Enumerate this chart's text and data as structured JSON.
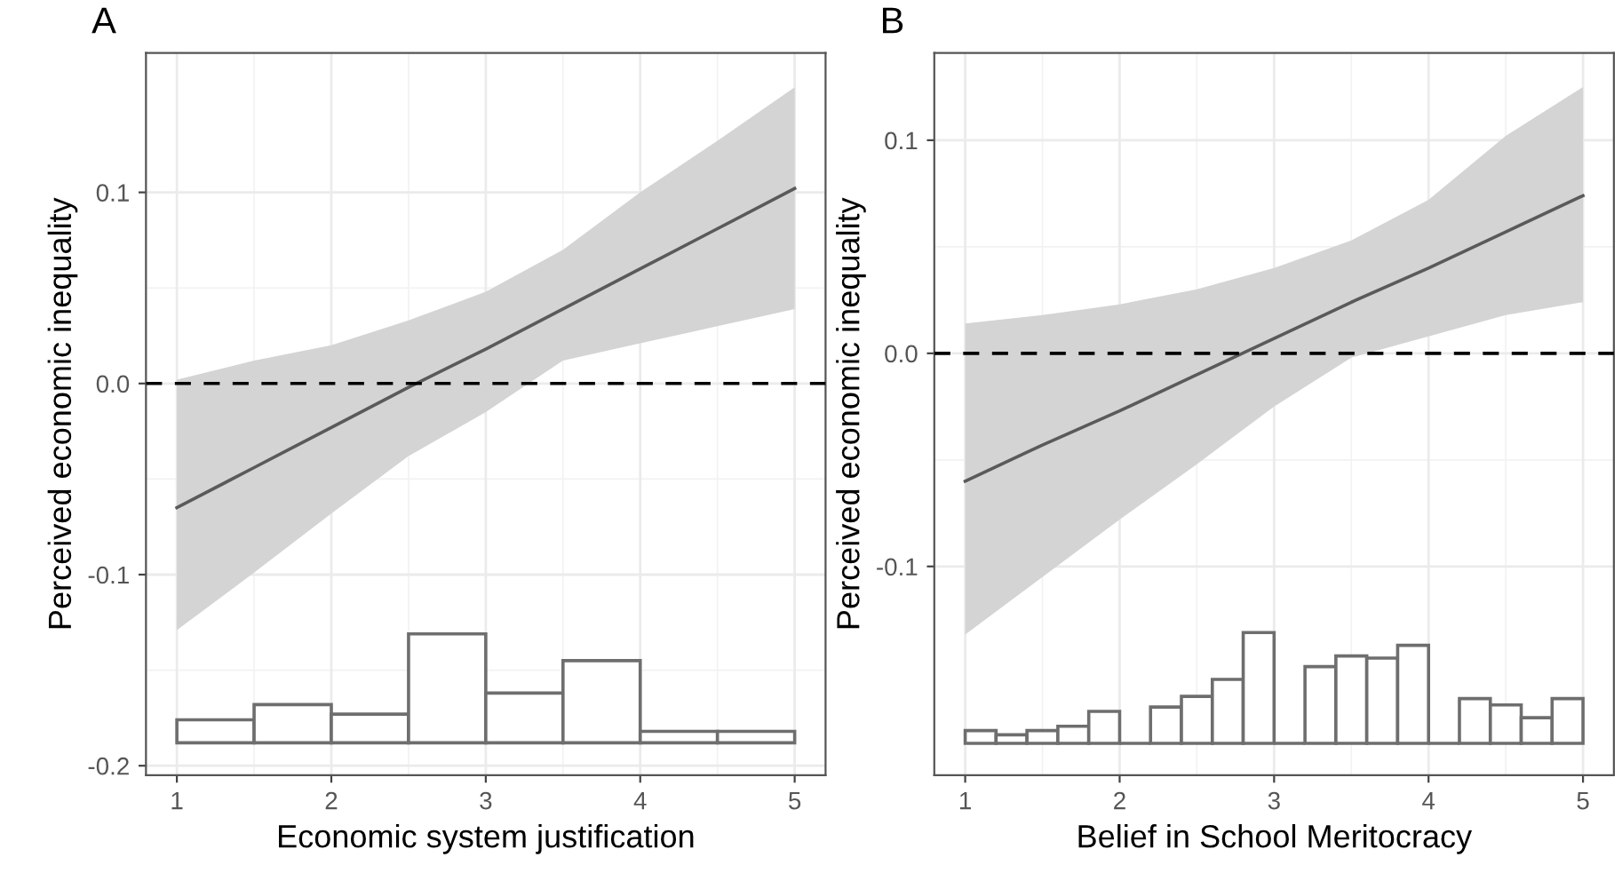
{
  "chart_data": [
    {
      "type": "line",
      "title": "A",
      "xlabel": "Economic system justification",
      "ylabel": "Perceived economic inequality",
      "xlim": [
        0.8,
        5.2
      ],
      "ylim": [
        -0.205,
        0.173
      ],
      "xticks": [
        1,
        2,
        3,
        4,
        5
      ],
      "yticks": [
        {
          "value": -0.2,
          "label": "-0.2"
        },
        {
          "value": -0.1,
          "label": "-0.1"
        },
        {
          "value": 0.0,
          "label": "0.0"
        },
        {
          "value": 0.1,
          "label": "0.1"
        }
      ],
      "grid": true,
      "legend": false,
      "series": [
        {
          "color": "#5a5a5a",
          "x": [
            1,
            1.5,
            2,
            2.5,
            3,
            3.5,
            4,
            4.5,
            5
          ],
          "values": [
            -0.065,
            -0.044,
            -0.023,
            -0.002,
            0.018,
            0.039,
            0.06,
            0.081,
            0.102
          ],
          "lower": [
            -0.129,
            -0.099,
            -0.068,
            -0.038,
            -0.015,
            0.012,
            0.021,
            0.03,
            0.039
          ],
          "upper": [
            0.002,
            0.012,
            0.02,
            0.033,
            0.048,
            0.07,
            0.1,
            0.127,
            0.155
          ]
        },
        {
          "type": "histogram",
          "color": "#6e6e6e",
          "bins": [
            1,
            1.5,
            2,
            2.5,
            3,
            3.5,
            4,
            4.5,
            5
          ],
          "values": [
            0.012,
            0.02,
            0.015,
            0.057,
            0.026,
            0.043,
            0.006,
            0.006
          ],
          "base": [
            -0.188,
            -0.188,
            -0.188,
            -0.188,
            -0.188,
            -0.188,
            -0.188,
            -0.188
          ]
        }
      ],
      "ref_lines": [
        {
          "axis": "y",
          "value": 0,
          "color": "#000000",
          "line_style": "dashed"
        }
      ]
    },
    {
      "type": "line",
      "title": "B",
      "xlabel": "Belief in School Meritocracy",
      "ylabel": "Perceived economic inequality",
      "xlim": [
        0.8,
        5.2
      ],
      "ylim": [
        -0.198,
        0.141
      ],
      "xticks": [
        1,
        2,
        3,
        4,
        5
      ],
      "yticks": [
        {
          "value": -0.1,
          "label": "-0.1"
        },
        {
          "value": 0.0,
          "label": "0.0"
        },
        {
          "value": 0.1,
          "label": "0.1"
        }
      ],
      "grid": true,
      "legend": false,
      "series": [
        {
          "color": "#5a5a5a",
          "x": [
            1,
            1.5,
            2,
            2.5,
            3,
            3.5,
            4,
            4.5,
            5
          ],
          "values": [
            -0.06,
            -0.043,
            -0.027,
            -0.01,
            0.007,
            0.024,
            0.04,
            0.057,
            0.074
          ],
          "lower": [
            -0.132,
            -0.105,
            -0.078,
            -0.052,
            -0.025,
            -0.002,
            0.008,
            0.018,
            0.024
          ],
          "upper": [
            0.014,
            0.018,
            0.023,
            0.03,
            0.04,
            0.053,
            0.072,
            0.102,
            0.125
          ]
        },
        {
          "type": "histogram",
          "color": "#6e6e6e",
          "bins": [
            1,
            1.2,
            1.4,
            1.6,
            1.8,
            2,
            2.2,
            2.4,
            2.6,
            2.8,
            3,
            3.2,
            3.4,
            3.6,
            3.8,
            4,
            4.2,
            4.4,
            4.6,
            4.8,
            5
          ],
          "values": [
            0.006,
            0.004,
            0.006,
            0.008,
            0.015,
            0,
            0.017,
            0.022,
            0.03,
            0.052,
            0,
            0.036,
            0.041,
            0.04,
            0.046,
            0,
            0.021,
            0.018,
            0.012,
            0.021
          ],
          "base": [
            -0.183,
            -0.183,
            -0.183,
            -0.183,
            -0.183,
            -0.183,
            -0.183,
            -0.183,
            -0.183,
            -0.183,
            -0.183,
            -0.183,
            -0.183,
            -0.183,
            -0.183,
            -0.183,
            -0.183,
            -0.183,
            -0.183,
            -0.183
          ]
        }
      ],
      "ref_lines": [
        {
          "axis": "y",
          "value": 0,
          "color": "#000000",
          "line_style": "dashed"
        }
      ]
    }
  ]
}
